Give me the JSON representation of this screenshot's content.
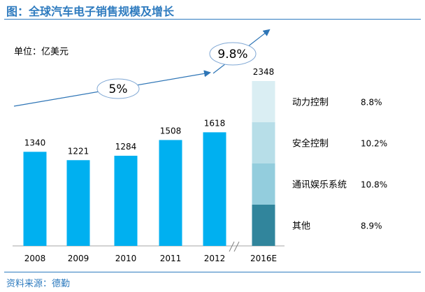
{
  "header": {
    "title": "图：全球汽车电子销售规模及增长"
  },
  "footer": {
    "source": "资料来源：德勤"
  },
  "colors": {
    "accent": "#2e7bbf",
    "bar": "#00b0f0",
    "arrow": "#2e75b6",
    "ellipse_stroke": "#7fa7d4"
  },
  "chart_data": {
    "type": "bar",
    "unit_label": "单位：亿美元",
    "categories": [
      "2008",
      "2009",
      "2010",
      "2011",
      "2012",
      "2016E"
    ],
    "values": [
      1340,
      1221,
      1284,
      1508,
      1618,
      2348
    ],
    "value_labels": [
      "1340",
      "1221",
      "1284",
      "1508",
      "1618",
      "2348"
    ],
    "ylim": [
      0,
      2348
    ],
    "grid": false,
    "axis_break_between": [
      "2012",
      "2016E"
    ],
    "growth_annotations": [
      {
        "label": "5%",
        "from": "2008",
        "to": "2012"
      },
      {
        "label": "9.8%",
        "from": "2012",
        "to": "2016E"
      }
    ],
    "stacked_2016E": {
      "segments": [
        {
          "name": "其他",
          "share": "8.9%",
          "color": "#31859c"
        },
        {
          "name": "通讯娱乐系统",
          "share": "10.8%",
          "color": "#93cddd"
        },
        {
          "name": "安全控制",
          "share": "10.2%",
          "color": "#b7dee8"
        },
        {
          "name": "动力控制",
          "share": "8.8%",
          "color": "#daeef3"
        }
      ]
    }
  }
}
